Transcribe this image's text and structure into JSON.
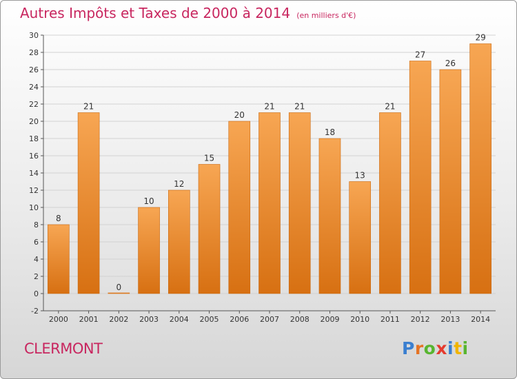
{
  "header": {
    "title": "Autres Impôts et Taxes de 2000 à 2014",
    "unit": "(en milliers d'€)"
  },
  "footer": {
    "commune": "CLERMONT",
    "brand": "Proxiti"
  },
  "colors": {
    "title": "#c8265f",
    "bar_top": "#f7a653",
    "bar_bottom": "#d77012",
    "brand": [
      "#3a7fd0",
      "#e57324",
      "#58b530",
      "#e53a2e",
      "#3a7fd0",
      "#f0b400",
      "#58b530"
    ]
  },
  "chart_data": {
    "type": "bar",
    "title": "Autres Impôts et Taxes de 2000 à 2014",
    "subtitle": "(en milliers d'€)",
    "categories": [
      "2000",
      "2001",
      "2002",
      "2003",
      "2004",
      "2005",
      "2006",
      "2007",
      "2008",
      "2009",
      "2010",
      "2011",
      "2012",
      "2013",
      "2014"
    ],
    "values": [
      8,
      21,
      0,
      10,
      12,
      15,
      20,
      21,
      21,
      18,
      13,
      21,
      27,
      26,
      29
    ],
    "data_labels": [
      "8",
      "21",
      "0",
      "10",
      "12",
      "15",
      "20",
      "21",
      "21",
      "18",
      "13",
      "21",
      "27",
      "26",
      "29"
    ],
    "yticks": [
      "-2",
      "0",
      "2",
      "4",
      "6",
      "8",
      "10",
      "12",
      "14",
      "16",
      "18",
      "20",
      "22",
      "24",
      "26",
      "28",
      "30"
    ],
    "ylim": [
      -2,
      30
    ],
    "xlabel": "",
    "ylabel": "",
    "grid": true
  }
}
